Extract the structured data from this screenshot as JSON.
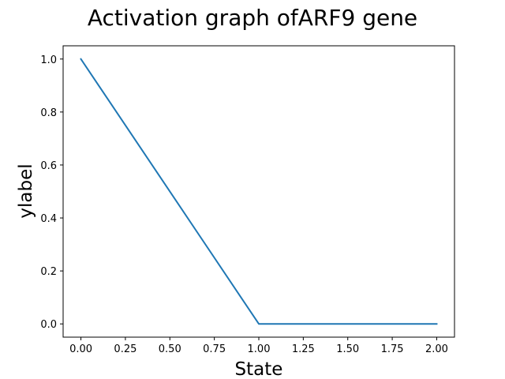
{
  "chart_data": {
    "type": "line",
    "title": "Activation graph ofARF9 gene",
    "xlabel": "State",
    "ylabel": "ylabel",
    "x": [
      0,
      1,
      2
    ],
    "series": [
      {
        "values": [
          1.0,
          0.0,
          0.0
        ],
        "color": "#1f77b4"
      }
    ],
    "xlim": [
      -0.1,
      2.1
    ],
    "ylim": [
      -0.05,
      1.05
    ],
    "xticks": [
      0,
      0.25,
      0.5,
      0.75,
      1.0,
      1.25,
      1.5,
      1.75,
      2.0
    ],
    "xtick_labels": [
      "0.00",
      "0.25",
      "0.50",
      "0.75",
      "1.00",
      "1.25",
      "1.50",
      "1.75",
      "2.00"
    ],
    "yticks": [
      0,
      0.2,
      0.4,
      0.6,
      0.8,
      1.0
    ],
    "ytick_labels": [
      "0.0",
      "0.2",
      "0.4",
      "0.6",
      "0.8",
      "1.0"
    ],
    "grid": false,
    "legend": false
  }
}
